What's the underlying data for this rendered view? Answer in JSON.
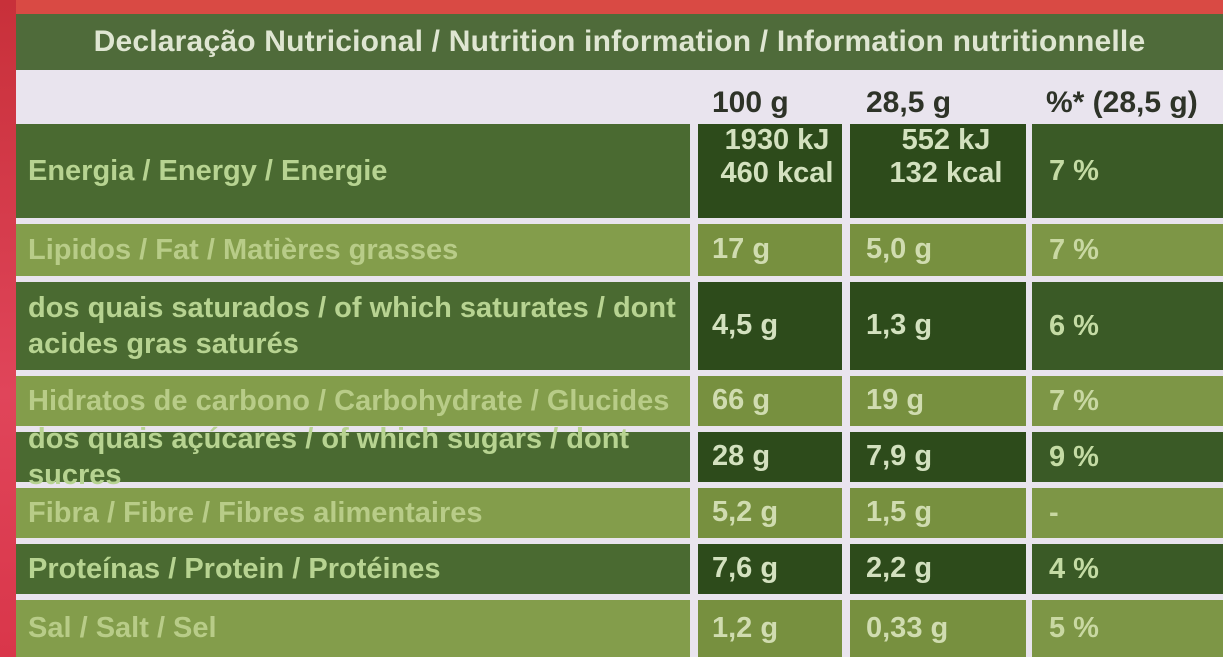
{
  "table": {
    "title": "Declaração Nutricional / Nutrition information / Information nutritionnelle",
    "headers": {
      "per100": "100 g",
      "perPortion": "28,5 g",
      "percent": "%* (28,5 g)"
    },
    "rows": [
      {
        "label": "Energia / Energy / Energie",
        "v100_line1": "1930 kJ",
        "v100_line2": "460 kcal",
        "vPortion_line1": "552 kJ",
        "vPortion_line2": "132 kcal",
        "pct": "7 %"
      },
      {
        "label": "Lipidos / Fat / Matières grasses",
        "v100": "17 g",
        "vPortion": "5,0 g",
        "pct": "7 %"
      },
      {
        "label_line1": "dos quais saturados / of which saturates / dont",
        "label_line2": "acides gras saturés",
        "v100": "4,5 g",
        "vPortion": "1,3 g",
        "pct": "6 %"
      },
      {
        "label": "Hidratos de carbono / Carbohydrate / Glucides",
        "v100": "66 g",
        "vPortion": "19 g",
        "pct": "7 %"
      },
      {
        "label": "dos quais açúcares / of which sugars / dont sucres",
        "v100": "28 g",
        "vPortion": "7,9 g",
        "pct": "9 %"
      },
      {
        "label": "Fibra / Fibre / Fibres alimentaires",
        "v100": "5,2 g",
        "vPortion": "1,5 g",
        "pct": "-"
      },
      {
        "label": "Proteínas / Protein / Protéines",
        "v100": "7,6 g",
        "vPortion": "2,2 g",
        "pct": "4 %"
      },
      {
        "label": "Sal / Salt / Sel",
        "v100": "1,2 g",
        "vPortion": "0,33 g",
        "pct": "5 %"
      }
    ]
  }
}
